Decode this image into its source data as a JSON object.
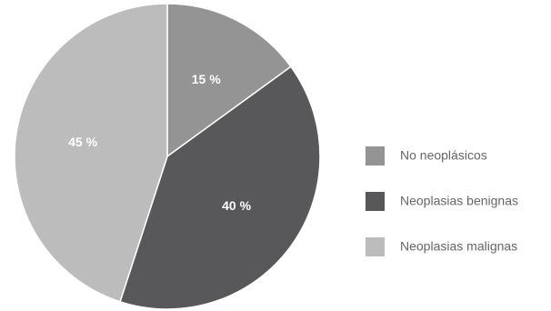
{
  "chart_data": {
    "type": "pie",
    "title": "",
    "slices": [
      {
        "label": "No neoplásicos",
        "value": 15,
        "display": "15 %",
        "color": "#949494"
      },
      {
        "label": "Neoplasias benignas",
        "value": 40,
        "display": "40 %",
        "color": "#58585a"
      },
      {
        "label": "Neoplasias malignas",
        "value": 45,
        "display": "45 %",
        "color": "#bcbcbd"
      }
    ],
    "start_angle": "12 o'clock",
    "direction": "clockwise",
    "legend_position": "right"
  }
}
